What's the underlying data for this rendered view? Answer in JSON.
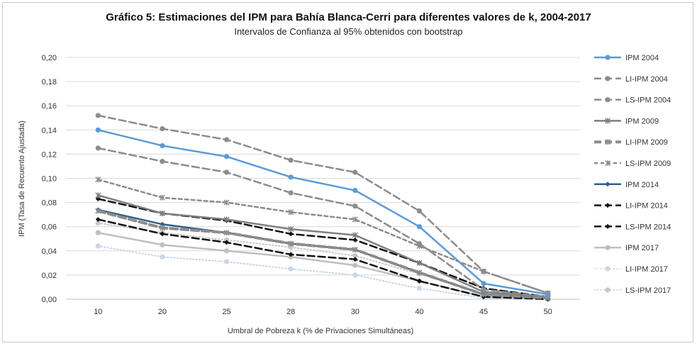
{
  "chart_data": {
    "type": "line",
    "title": "Gráfico 5: Estimaciones del IPM para Bahía Blanca-Cerri para diferentes valores de k, 2004-2017",
    "subtitle": "Intervalos de Confianza al 95% obtenidos con bootstrap",
    "xlabel": "Umbral de Pobreza k (% de Privaciones Simultáneas)",
    "ylabel": "IPM (Tasa de Recuento Ajustada)",
    "categories": [
      "10",
      "20",
      "25",
      "28",
      "30",
      "40",
      "45",
      "50"
    ],
    "ylim": [
      0,
      0.2
    ],
    "ytick_labels": [
      "0,00",
      "0,02",
      "0,04",
      "0,06",
      "0,08",
      "0,10",
      "0,12",
      "0,14",
      "0,16",
      "0,18",
      "0,20"
    ],
    "grid": true,
    "legend_position": "right",
    "series": [
      {
        "name": "IPM 2004",
        "values": [
          0.14,
          0.127,
          0.118,
          0.101,
          0.09,
          0.06,
          0.013,
          0.004
        ],
        "color": "#5b9bd5",
        "dash": "solid",
        "width": 2.5,
        "marker": "circle"
      },
      {
        "name": "LI-IPM 2004",
        "values": [
          0.125,
          0.114,
          0.105,
          0.088,
          0.077,
          0.046,
          0.008,
          0.002
        ],
        "color": "#8c8c8c",
        "dash": "longdash",
        "width": 2.5,
        "marker": "circle"
      },
      {
        "name": "LS-IPM 2004",
        "values": [
          0.152,
          0.141,
          0.132,
          0.115,
          0.105,
          0.073,
          0.023,
          0.005
        ],
        "color": "#8c8c8c",
        "dash": "longdash",
        "width": 2.5,
        "marker": "circle"
      },
      {
        "name": "IPM 2009",
        "values": [
          0.086,
          0.071,
          0.066,
          0.058,
          0.053,
          0.03,
          0.006,
          0.002
        ],
        "color": "#7f7f7f",
        "dash": "solid",
        "width": 2.5,
        "marker": "star"
      },
      {
        "name": "LI-IPM 2009",
        "values": [
          0.073,
          0.059,
          0.055,
          0.046,
          0.041,
          0.022,
          0.004,
          0.001
        ],
        "color": "#8c8c8c",
        "dash": "longdash",
        "width": 4,
        "marker": "star"
      },
      {
        "name": "LS-IPM 2009",
        "values": [
          0.099,
          0.084,
          0.08,
          0.072,
          0.066,
          0.044,
          0.023,
          0.005
        ],
        "color": "#8c8c8c",
        "dash": "shortdash",
        "width": 2.5,
        "marker": "star"
      },
      {
        "name": "IPM 2014",
        "values": [
          0.074,
          0.062,
          0.055,
          0.046,
          0.041,
          0.022,
          0.004,
          0.001
        ],
        "color": "#2e5f8f",
        "dash": "solid",
        "width": 2.5,
        "marker": "diamond"
      },
      {
        "name": "LI-IPM 2014",
        "values": [
          0.066,
          0.054,
          0.047,
          0.037,
          0.033,
          0.015,
          0.002,
          0.0
        ],
        "color": "#111111",
        "dash": "longdash",
        "width": 2.5,
        "marker": "diamond"
      },
      {
        "name": "LS-IPM 2014",
        "values": [
          0.083,
          0.071,
          0.065,
          0.054,
          0.049,
          0.03,
          0.009,
          0.002
        ],
        "color": "#111111",
        "dash": "longdash",
        "width": 2.5,
        "marker": "diamond"
      },
      {
        "name": "IPM 2017",
        "values": [
          0.055,
          0.045,
          0.04,
          0.035,
          0.028,
          0.015,
          0.002,
          0.0
        ],
        "color": "#bfbfbf",
        "dash": "solid",
        "width": 2.5,
        "marker": "circle"
      },
      {
        "name": "LI-IPM 2017",
        "values": [
          0.044,
          0.035,
          0.031,
          0.025,
          0.02,
          0.009,
          0.001,
          0.0
        ],
        "color": "#c9d6e6",
        "dash": "dot",
        "width": 2,
        "marker": "circle"
      },
      {
        "name": "LS-IPM 2017",
        "values": [
          0.063,
          0.055,
          0.049,
          0.043,
          0.036,
          0.021,
          0.004,
          0.001
        ],
        "color": "#c7c7c7",
        "dash": "dot",
        "width": 2,
        "marker": "circle"
      }
    ]
  }
}
